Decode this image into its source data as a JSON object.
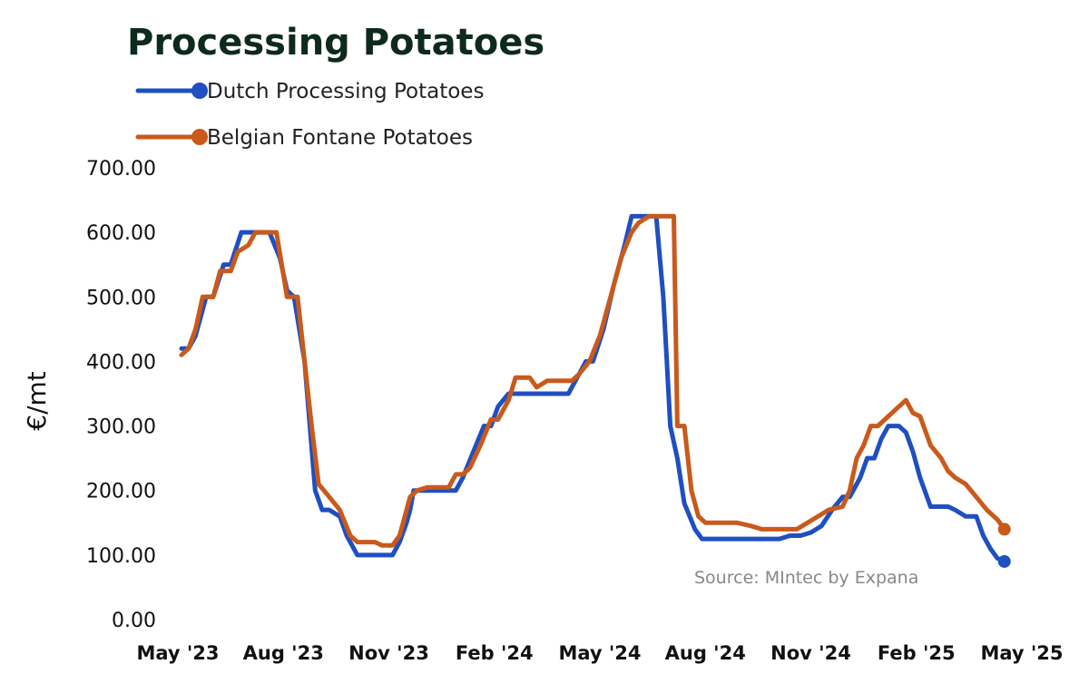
{
  "chart_data": {
    "type": "line",
    "title": "Processing Potatoes",
    "ylabel": "€/mt",
    "xlabel": "",
    "source": "Source: MIntec by Expana",
    "ylim": [
      0,
      700
    ],
    "yticks": [
      "0.00",
      "100.00",
      "200.00",
      "300.00",
      "400.00",
      "500.00",
      "600.00",
      "700.00"
    ],
    "xticks": [
      "May '23",
      "Aug '23",
      "Nov '23",
      "Feb '24",
      "May '24",
      "Aug '24",
      "Nov '24",
      "Feb '25",
      "May '25"
    ],
    "xlim_months": [
      0,
      24
    ],
    "grid": false,
    "legend_position": "top-left",
    "series": [
      {
        "name": "Dutch Processing Potatoes",
        "color": "#1f4fc0",
        "points": [
          [
            0.0,
            420
          ],
          [
            0.2,
            420
          ],
          [
            0.4,
            440
          ],
          [
            0.7,
            500
          ],
          [
            0.9,
            500
          ],
          [
            1.2,
            550
          ],
          [
            1.4,
            550
          ],
          [
            1.7,
            600
          ],
          [
            2.2,
            600
          ],
          [
            2.5,
            600
          ],
          [
            2.8,
            560
          ],
          [
            3.0,
            510
          ],
          [
            3.2,
            500
          ],
          [
            3.5,
            400
          ],
          [
            3.8,
            200
          ],
          [
            4.0,
            170
          ],
          [
            4.2,
            170
          ],
          [
            4.5,
            160
          ],
          [
            4.7,
            130
          ],
          [
            5.0,
            100
          ],
          [
            5.5,
            100
          ],
          [
            5.8,
            100
          ],
          [
            6.0,
            100
          ],
          [
            6.2,
            120
          ],
          [
            6.4,
            150
          ],
          [
            6.5,
            170
          ],
          [
            6.6,
            200
          ],
          [
            6.8,
            200
          ],
          [
            7.0,
            200
          ],
          [
            7.2,
            200
          ],
          [
            7.5,
            200
          ],
          [
            7.8,
            200
          ],
          [
            8.0,
            220
          ],
          [
            8.3,
            260
          ],
          [
            8.6,
            300
          ],
          [
            8.8,
            300
          ],
          [
            9.0,
            330
          ],
          [
            9.3,
            350
          ],
          [
            9.6,
            350
          ],
          [
            10.0,
            350
          ],
          [
            10.5,
            350
          ],
          [
            11.0,
            350
          ],
          [
            11.3,
            380
          ],
          [
            11.5,
            400
          ],
          [
            11.7,
            400
          ],
          [
            12.0,
            450
          ],
          [
            12.3,
            520
          ],
          [
            12.6,
            580
          ],
          [
            12.8,
            625
          ],
          [
            13.1,
            625
          ],
          [
            13.5,
            625
          ],
          [
            13.7,
            500
          ],
          [
            13.8,
            400
          ],
          [
            13.9,
            300
          ],
          [
            14.1,
            250
          ],
          [
            14.3,
            180
          ],
          [
            14.6,
            140
          ],
          [
            14.8,
            125
          ],
          [
            15.0,
            125
          ],
          [
            16.0,
            125
          ],
          [
            17.0,
            125
          ],
          [
            17.3,
            130
          ],
          [
            17.6,
            130
          ],
          [
            17.9,
            135
          ],
          [
            18.2,
            145
          ],
          [
            18.5,
            170
          ],
          [
            18.8,
            190
          ],
          [
            19.0,
            190
          ],
          [
            19.3,
            220
          ],
          [
            19.5,
            250
          ],
          [
            19.7,
            250
          ],
          [
            19.9,
            280
          ],
          [
            20.1,
            300
          ],
          [
            20.4,
            300
          ],
          [
            20.6,
            290
          ],
          [
            20.8,
            260
          ],
          [
            21.0,
            220
          ],
          [
            21.3,
            175
          ],
          [
            21.8,
            175
          ],
          [
            22.0,
            170
          ],
          [
            22.3,
            160
          ],
          [
            22.6,
            160
          ],
          [
            22.8,
            130
          ],
          [
            23.0,
            110
          ],
          [
            23.2,
            95
          ],
          [
            23.4,
            90
          ]
        ]
      },
      {
        "name": "Belgian Fontane Potatoes",
        "color": "#c95a1b",
        "points": [
          [
            0.0,
            410
          ],
          [
            0.2,
            420
          ],
          [
            0.4,
            450
          ],
          [
            0.6,
            500
          ],
          [
            0.9,
            500
          ],
          [
            1.1,
            540
          ],
          [
            1.4,
            540
          ],
          [
            1.6,
            570
          ],
          [
            1.9,
            580
          ],
          [
            2.1,
            600
          ],
          [
            2.5,
            600
          ],
          [
            2.7,
            600
          ],
          [
            3.0,
            500
          ],
          [
            3.3,
            500
          ],
          [
            3.5,
            400
          ],
          [
            3.7,
            300
          ],
          [
            3.9,
            210
          ],
          [
            4.2,
            190
          ],
          [
            4.5,
            170
          ],
          [
            4.8,
            130
          ],
          [
            5.0,
            120
          ],
          [
            5.5,
            120
          ],
          [
            5.7,
            115
          ],
          [
            6.0,
            115
          ],
          [
            6.2,
            130
          ],
          [
            6.5,
            190
          ],
          [
            6.7,
            200
          ],
          [
            7.0,
            205
          ],
          [
            7.3,
            205
          ],
          [
            7.6,
            205
          ],
          [
            7.8,
            225
          ],
          [
            8.0,
            225
          ],
          [
            8.2,
            235
          ],
          [
            8.5,
            270
          ],
          [
            8.8,
            310
          ],
          [
            9.0,
            310
          ],
          [
            9.3,
            340
          ],
          [
            9.5,
            375
          ],
          [
            9.9,
            375
          ],
          [
            10.1,
            360
          ],
          [
            10.4,
            370
          ],
          [
            10.8,
            370
          ],
          [
            11.1,
            370
          ],
          [
            11.3,
            380
          ],
          [
            11.6,
            400
          ],
          [
            11.9,
            440
          ],
          [
            12.2,
            500
          ],
          [
            12.5,
            560
          ],
          [
            12.8,
            600
          ],
          [
            13.0,
            615
          ],
          [
            13.3,
            625
          ],
          [
            13.8,
            625
          ],
          [
            14.0,
            625
          ],
          [
            14.1,
            300
          ],
          [
            14.3,
            300
          ],
          [
            14.5,
            200
          ],
          [
            14.7,
            160
          ],
          [
            14.9,
            150
          ],
          [
            15.3,
            150
          ],
          [
            15.8,
            150
          ],
          [
            16.2,
            145
          ],
          [
            16.5,
            140
          ],
          [
            17.0,
            140
          ],
          [
            17.5,
            140
          ],
          [
            17.8,
            150
          ],
          [
            18.1,
            160
          ],
          [
            18.4,
            170
          ],
          [
            18.8,
            175
          ],
          [
            19.0,
            200
          ],
          [
            19.2,
            250
          ],
          [
            19.4,
            270
          ],
          [
            19.6,
            300
          ],
          [
            19.8,
            300
          ],
          [
            20.1,
            315
          ],
          [
            20.4,
            330
          ],
          [
            20.6,
            340
          ],
          [
            20.8,
            320
          ],
          [
            21.0,
            315
          ],
          [
            21.3,
            270
          ],
          [
            21.6,
            250
          ],
          [
            21.8,
            230
          ],
          [
            22.0,
            220
          ],
          [
            22.3,
            210
          ],
          [
            22.6,
            190
          ],
          [
            22.9,
            170
          ],
          [
            23.2,
            155
          ],
          [
            23.4,
            140
          ]
        ]
      }
    ]
  }
}
